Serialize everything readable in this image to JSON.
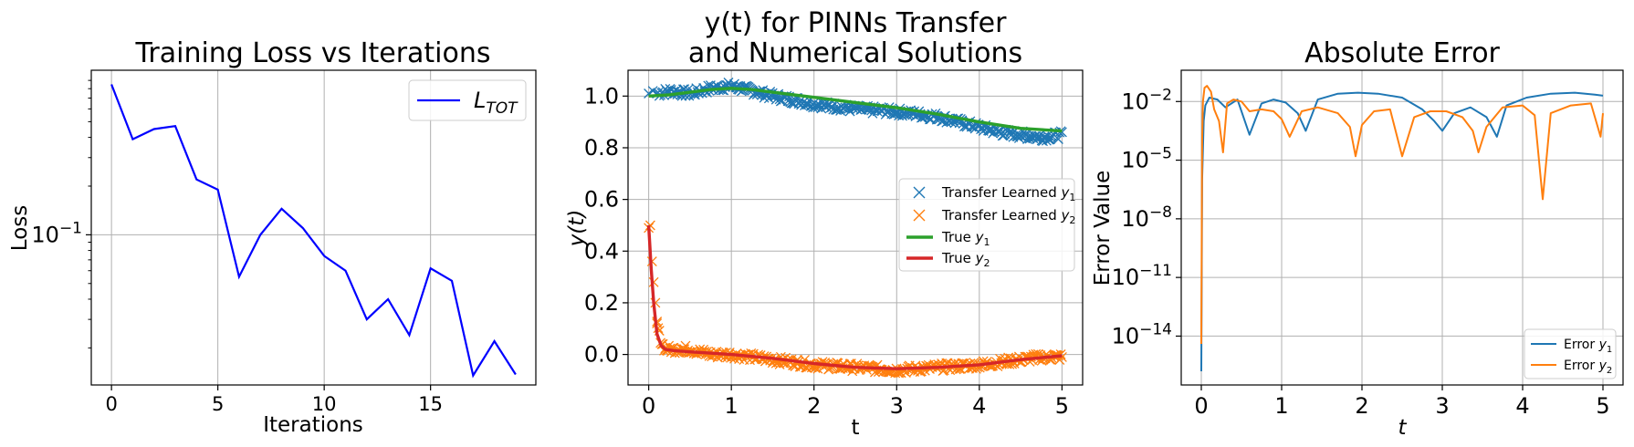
{
  "chart_data": [
    {
      "type": "line",
      "title": "Training Loss vs Iterations",
      "xlabel": "Iterations",
      "ylabel": "Loss",
      "yscale": "log",
      "xlim": [
        -0.95,
        19.95
      ],
      "ylim": [
        0.0118,
        1.04
      ],
      "grid": true,
      "legend_position": "top-right",
      "x_ticks": [
        {
          "v": 0,
          "label": "0"
        },
        {
          "v": 5,
          "label": "5"
        },
        {
          "v": 10,
          "label": "10"
        },
        {
          "v": 15,
          "label": "15"
        }
      ],
      "y_ticks": [
        {
          "v": 0.1,
          "base": "10",
          "exp": "−1"
        }
      ],
      "series": [
        {
          "name_main": "L",
          "name_sub": "TOT",
          "color": "#0000ff",
          "x": [
            0,
            1,
            2,
            3,
            4,
            5,
            6,
            7,
            8,
            9,
            10,
            11,
            12,
            13,
            14,
            15,
            16,
            17,
            18,
            19
          ],
          "y": [
            0.85,
            0.39,
            0.45,
            0.47,
            0.22,
            0.19,
            0.055,
            0.1,
            0.145,
            0.11,
            0.074,
            0.06,
            0.03,
            0.04,
            0.024,
            0.062,
            0.052,
            0.0135,
            0.022,
            0.0137
          ]
        }
      ]
    },
    {
      "type": "line",
      "title_line1": "y(t) for PINNs Transfer",
      "title_line2": "and Numerical Solutions",
      "xlabel": "t",
      "ylabel": "y(t)",
      "xlim": [
        -0.25,
        5.25
      ],
      "ylim": [
        -0.118,
        1.1
      ],
      "grid": true,
      "legend_position": "center-right",
      "x_ticks": [
        {
          "v": 0,
          "label": "0"
        },
        {
          "v": 1,
          "label": "1"
        },
        {
          "v": 2,
          "label": "2"
        },
        {
          "v": 3,
          "label": "3"
        },
        {
          "v": 4,
          "label": "4"
        },
        {
          "v": 5,
          "label": "5"
        }
      ],
      "y_ticks": [
        {
          "v": 0,
          "label": "0.0"
        },
        {
          "v": 0.2,
          "label": "0.2"
        },
        {
          "v": 0.4,
          "label": "0.4"
        },
        {
          "v": 0.6,
          "label": "0.6"
        },
        {
          "v": 0.8,
          "label": "0.8"
        },
        {
          "v": 1.0,
          "label": "1.0"
        }
      ],
      "series": [
        {
          "name": "Transfer Learned y1",
          "name_main": "Transfer Learned ",
          "name_var": "y",
          "name_sub": "1",
          "kind": "markers",
          "marker": "x",
          "color": "#1f77b4",
          "x": [
            0,
            0.05,
            0.1,
            0.25,
            0.5,
            0.75,
            1.0,
            1.25,
            1.5,
            2.0,
            2.5,
            3.0,
            3.5,
            4.0,
            4.25,
            4.5,
            4.75,
            5.0
          ],
          "y": [
            1.01,
            1.02,
            1.01,
            1.02,
            1.01,
            1.03,
            1.04,
            1.02,
            1.0,
            0.97,
            0.95,
            0.94,
            0.92,
            0.88,
            0.86,
            0.85,
            0.84,
            0.85
          ]
        },
        {
          "name": "Transfer Learned y2",
          "name_main": "Transfer Learned ",
          "name_var": "y",
          "name_sub": "2",
          "kind": "markers",
          "marker": "x",
          "color": "#ff7f0e",
          "x": [
            0,
            0.02,
            0.04,
            0.06,
            0.08,
            0.1,
            0.15,
            0.2,
            0.3,
            0.5,
            0.75,
            1.0,
            1.5,
            2.0,
            2.5,
            3.0,
            3.5,
            4.0,
            4.5,
            4.75,
            5.0
          ],
          "y": [
            0.49,
            0.5,
            0.36,
            0.28,
            0.2,
            0.12,
            0.05,
            0.02,
            0.02,
            0.02,
            0.0,
            0.0,
            -0.02,
            -0.04,
            -0.05,
            -0.06,
            -0.05,
            -0.04,
            -0.02,
            -0.01,
            -0.01
          ]
        },
        {
          "name": "True y1",
          "name_main": "True ",
          "name_var": "y",
          "name_sub": "1",
          "kind": "line",
          "color": "#2ca02c",
          "x": [
            0,
            0.25,
            0.5,
            0.75,
            1.0,
            1.25,
            1.5,
            2.0,
            2.5,
            3.0,
            3.5,
            4.0,
            4.5,
            5.0
          ],
          "y": [
            1.0,
            1.005,
            1.015,
            1.025,
            1.03,
            1.025,
            1.015,
            0.995,
            0.975,
            0.955,
            0.93,
            0.9,
            0.875,
            0.865
          ]
        },
        {
          "name": "True y2",
          "name_main": "True ",
          "name_var": "y",
          "name_sub": "2",
          "kind": "line",
          "color": "#d62728",
          "x": [
            0,
            0.03,
            0.06,
            0.1,
            0.15,
            0.2,
            0.3,
            0.5,
            1.0,
            1.5,
            2.0,
            2.5,
            3.0,
            3.5,
            4.0,
            4.5,
            5.0
          ],
          "y": [
            0.5,
            0.33,
            0.2,
            0.08,
            0.035,
            0.02,
            0.015,
            0.01,
            0.0,
            -0.015,
            -0.035,
            -0.05,
            -0.055,
            -0.05,
            -0.04,
            -0.02,
            -0.005
          ]
        }
      ]
    },
    {
      "type": "line",
      "title": "Absolute Error",
      "xlabel": "t",
      "ylabel": "Error Value",
      "yscale": "log",
      "xlim": [
        -0.25,
        5.25
      ],
      "ylim_exp": [
        -16.5,
        -0.4
      ],
      "grid": true,
      "legend_position": "bottom-right",
      "x_ticks": [
        {
          "v": 0,
          "label": "0"
        },
        {
          "v": 1,
          "label": "1"
        },
        {
          "v": 2,
          "label": "2"
        },
        {
          "v": 3,
          "label": "3"
        },
        {
          "v": 4,
          "label": "4"
        },
        {
          "v": 5,
          "label": "5"
        }
      ],
      "y_ticks": [
        {
          "e": -2,
          "base": "10",
          "exp": "−2"
        },
        {
          "e": -5,
          "base": "10",
          "exp": "−5"
        },
        {
          "e": -8,
          "base": "10",
          "exp": "−8"
        },
        {
          "e": -11,
          "base": "10",
          "exp": "−11"
        },
        {
          "e": -14,
          "base": "10",
          "exp": "−14"
        }
      ],
      "series": [
        {
          "name": "Error y1",
          "name_main": "Error ",
          "name_var": "y",
          "name_sub": "1",
          "color": "#1f77b4",
          "x": [
            0,
            0.01,
            0.03,
            0.05,
            0.1,
            0.2,
            0.3,
            0.45,
            0.6,
            0.75,
            0.9,
            1.05,
            1.2,
            1.3,
            1.45,
            1.7,
            1.95,
            2.2,
            2.5,
            2.75,
            2.9,
            3.0,
            3.15,
            3.35,
            3.55,
            3.68,
            3.8,
            4.05,
            4.35,
            4.65,
            4.9,
            5.0
          ],
          "log10": [
            -15.8,
            -6.0,
            -3.0,
            -2.2,
            -1.8,
            -1.9,
            -2.3,
            -1.9,
            -3.7,
            -2.1,
            -1.9,
            -2.05,
            -2.6,
            -3.5,
            -1.9,
            -1.6,
            -1.55,
            -1.6,
            -1.8,
            -2.4,
            -3.0,
            -3.5,
            -2.6,
            -2.3,
            -2.8,
            -3.8,
            -2.2,
            -1.8,
            -1.6,
            -1.55,
            -1.65,
            -1.7
          ]
        },
        {
          "name": "Error y2",
          "name_main": "Error ",
          "name_var": "y",
          "name_sub": "2",
          "color": "#ff7f0e",
          "x": [
            0,
            0.01,
            0.02,
            0.04,
            0.07,
            0.12,
            0.16,
            0.22,
            0.27,
            0.32,
            0.4,
            0.5,
            0.6,
            0.75,
            0.9,
            1.0,
            1.1,
            1.25,
            1.45,
            1.7,
            1.85,
            1.92,
            2.0,
            2.15,
            2.35,
            2.5,
            2.65,
            2.85,
            3.05,
            3.25,
            3.38,
            3.45,
            3.55,
            3.75,
            4.0,
            4.15,
            4.25,
            4.35,
            4.6,
            4.85,
            4.97,
            5.0
          ],
          "log10": [
            -14.4,
            -4.0,
            -2.0,
            -1.3,
            -1.2,
            -1.5,
            -2.4,
            -3.0,
            -4.6,
            -2.1,
            -1.9,
            -2.0,
            -2.5,
            -2.4,
            -2.5,
            -2.9,
            -3.8,
            -2.5,
            -2.3,
            -2.6,
            -3.3,
            -4.8,
            -3.2,
            -2.5,
            -2.4,
            -4.8,
            -2.8,
            -2.5,
            -2.5,
            -2.8,
            -3.5,
            -4.6,
            -3.3,
            -2.3,
            -2.2,
            -2.7,
            -7.0,
            -2.6,
            -2.2,
            -2.1,
            -3.8,
            -2.6
          ]
        }
      ]
    }
  ]
}
